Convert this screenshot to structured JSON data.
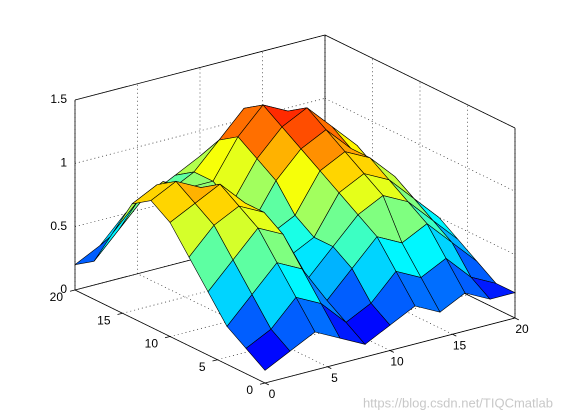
{
  "chart_data": {
    "type": "surface",
    "x": [
      0,
      2,
      4,
      6,
      8,
      10,
      12,
      14,
      16,
      18,
      20
    ],
    "y": [
      0,
      2,
      4,
      6,
      8,
      10,
      12,
      14,
      16,
      18,
      20
    ],
    "z": [
      [
        0.1,
        0.2,
        0.3,
        0.2,
        0.1,
        0.2,
        0.3,
        0.2,
        0.3,
        0.2,
        0.2
      ],
      [
        0.2,
        0.3,
        0.5,
        0.4,
        0.2,
        0.3,
        0.5,
        0.4,
        0.5,
        0.3,
        0.2
      ],
      [
        0.3,
        0.5,
        0.7,
        0.6,
        0.3,
        0.5,
        0.7,
        0.6,
        0.7,
        0.5,
        0.3
      ],
      [
        0.5,
        0.7,
        0.9,
        0.8,
        0.4,
        0.6,
        0.8,
        0.9,
        0.8,
        0.6,
        0.4
      ],
      [
        0.7,
        0.9,
        1.0,
        0.9,
        0.5,
        0.6,
        0.9,
        1.0,
        0.9,
        0.7,
        0.5
      ],
      [
        0.9,
        1.0,
        1.1,
        0.9,
        0.6,
        0.7,
        1.0,
        1.1,
        1.0,
        0.8,
        0.5
      ],
      [
        1.0,
        1.1,
        1.0,
        0.8,
        0.6,
        0.9,
        1.1,
        1.2,
        1.0,
        0.8,
        0.5
      ],
      [
        0.9,
        1.0,
        0.9,
        0.8,
        0.7,
        1.0,
        1.2,
        1.3,
        1.1,
        0.9,
        0.6
      ],
      [
        0.6,
        0.8,
        0.9,
        0.8,
        0.8,
        1.1,
        1.3,
        1.2,
        1.0,
        0.8,
        0.6
      ],
      [
        0.3,
        0.5,
        0.7,
        0.7,
        0.8,
        1.0,
        1.2,
        1.1,
        0.9,
        0.7,
        0.5
      ],
      [
        0.2,
        0.3,
        0.5,
        0.6,
        0.7,
        0.8,
        0.9,
        0.8,
        0.7,
        0.6,
        0.5
      ]
    ],
    "colormap": "jet",
    "edge_color": "#000000",
    "xlim": [
      0,
      20
    ],
    "ylim": [
      0,
      20
    ],
    "zlim": [
      0,
      1.5
    ],
    "xticks": [
      0,
      5,
      10,
      15,
      20
    ],
    "yticks": [
      0,
      5,
      10,
      15,
      20
    ],
    "zticks": [
      0,
      0.5,
      1,
      1.5
    ],
    "grid": true,
    "watermark": "https://blog.csdn.net/TIQCmatlab"
  }
}
